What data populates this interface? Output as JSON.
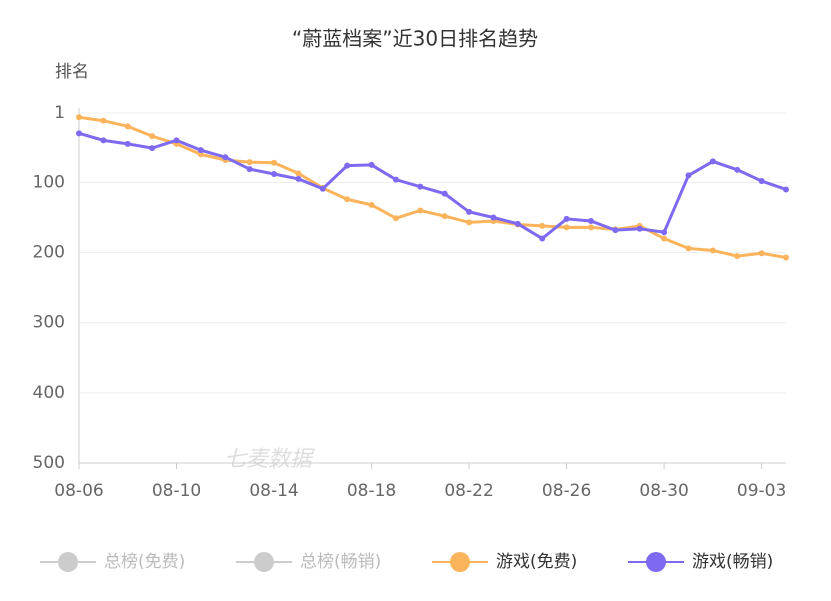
{
  "chart_data": {
    "type": "line",
    "title": "“蔚蓝档案”近30日排名趋势",
    "y_label": "排名",
    "watermark": "七麦数据",
    "categories": [
      "08-06",
      null,
      null,
      null,
      "08-10",
      null,
      null,
      null,
      "08-14",
      null,
      null,
      null,
      "08-18",
      null,
      null,
      null,
      "08-22",
      null,
      null,
      null,
      "08-26",
      null,
      null,
      null,
      "08-30",
      null,
      null,
      null,
      "09-03",
      null
    ],
    "ylim": [
      1,
      500
    ],
    "y_inverted": true,
    "yticks": [
      1,
      100,
      200,
      300,
      400,
      500
    ],
    "grid": true,
    "series": [
      {
        "name": "游戏(免费)",
        "color": "#fbb45c",
        "values": [
          7,
          12,
          20,
          34,
          45,
          60,
          68,
          71,
          72,
          87,
          108,
          124,
          132,
          151,
          140,
          148,
          157,
          155,
          160,
          162,
          164,
          164,
          167,
          162,
          180,
          194,
          197,
          205,
          201,
          207
        ]
      },
      {
        "name": "游戏(畅销)",
        "color": "#7d6af0",
        "values": [
          30,
          40,
          45,
          51,
          40,
          54,
          64,
          81,
          88,
          95,
          109,
          76,
          75,
          96,
          106,
          116,
          142,
          150,
          159,
          180,
          152,
          155,
          168,
          166,
          171,
          90,
          70,
          82,
          98,
          110
        ]
      }
    ],
    "legend_inactive": [
      "总榜(免费)",
      "总榜(畅销)"
    ],
    "inactive_color": "#cccccc"
  }
}
